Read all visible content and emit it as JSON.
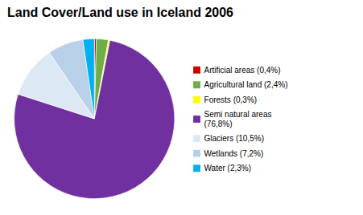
{
  "chart_data": {
    "type": "pie",
    "title": "Land Cover/Land use in Iceland 2006",
    "categories": [
      "Artificial areas (0,4%)",
      "Agricultural land (2,4%)",
      "Forests (0,3%)",
      "Semi natural areas\n(76,8%)",
      "Glaciers (10,5%)",
      "Wetlands (7,2%)",
      "Water (2,3%)"
    ],
    "values": [
      0.4,
      2.4,
      0.3,
      76.8,
      10.5,
      7.2,
      2.3
    ],
    "colors": [
      "#cc0000",
      "#70ad47",
      "#ffff00",
      "#7030a0",
      "#dce9f5",
      "#b8d0e8",
      "#00b0f0"
    ],
    "legend": "right"
  }
}
